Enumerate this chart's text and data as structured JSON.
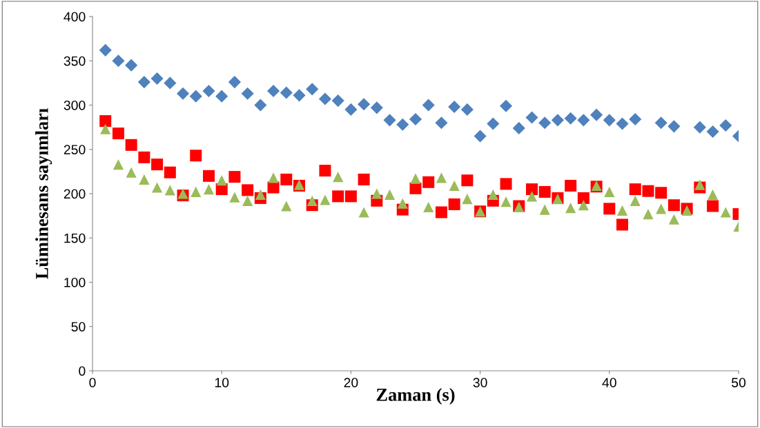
{
  "chart_data": {
    "type": "scatter",
    "xlabel": "Zaman (s)",
    "ylabel": "Lüminesans sayımları",
    "x": [
      1,
      2,
      3,
      4,
      5,
      6,
      7,
      8,
      9,
      10,
      11,
      12,
      13,
      14,
      15,
      16,
      17,
      18,
      19,
      20,
      21,
      22,
      23,
      24,
      25,
      26,
      27,
      28,
      29,
      30,
      31,
      32,
      33,
      34,
      35,
      36,
      37,
      38,
      39,
      40,
      41,
      42,
      43,
      44,
      45,
      46,
      47,
      48,
      49,
      50
    ],
    "series": [
      {
        "color": "#4f81bd",
        "marker": "diamond",
        "values": [
          362,
          350,
          345,
          326,
          330,
          325,
          313,
          310,
          316,
          310,
          326,
          313,
          300,
          316,
          314,
          311,
          318,
          307,
          305,
          295,
          301,
          297,
          283,
          278,
          284,
          300,
          280,
          298,
          295,
          265,
          279,
          299,
          274,
          286,
          280,
          283,
          285,
          283,
          289,
          283,
          279,
          284,
          null,
          280,
          276,
          null,
          275,
          270,
          277,
          265
        ]
      },
      {
        "color": "#ff0000",
        "marker": "square",
        "values": [
          282,
          268,
          255,
          241,
          233,
          224,
          198,
          243,
          220,
          205,
          219,
          204,
          195,
          207,
          216,
          209,
          187,
          226,
          197,
          197,
          216,
          192,
          null,
          182,
          206,
          213,
          179,
          188,
          215,
          180,
          192,
          211,
          186,
          205,
          202,
          195,
          209,
          195,
          208,
          183,
          165,
          205,
          203,
          201,
          187,
          183,
          207,
          186,
          null,
          177
        ]
      },
      {
        "color": "#9bbb59",
        "marker": "triangle",
        "values": [
          273,
          233,
          224,
          216,
          207,
          204,
          200,
          202,
          205,
          215,
          196,
          192,
          199,
          218,
          186,
          210,
          192,
          193,
          219,
          null,
          179,
          200,
          199,
          189,
          217,
          185,
          218,
          209,
          194,
          180,
          199,
          191,
          185,
          197,
          182,
          194,
          184,
          187,
          209,
          202,
          181,
          192,
          177,
          183,
          171,
          181,
          210,
          199,
          179,
          163
        ]
      }
    ],
    "xlim": [
      0,
      50
    ],
    "xticks": [
      0,
      10,
      20,
      30,
      40,
      50
    ],
    "ylim": [
      0,
      400
    ],
    "yticks": [
      0,
      50,
      100,
      150,
      200,
      250,
      300,
      350,
      400
    ],
    "grid": false,
    "legend": false
  }
}
